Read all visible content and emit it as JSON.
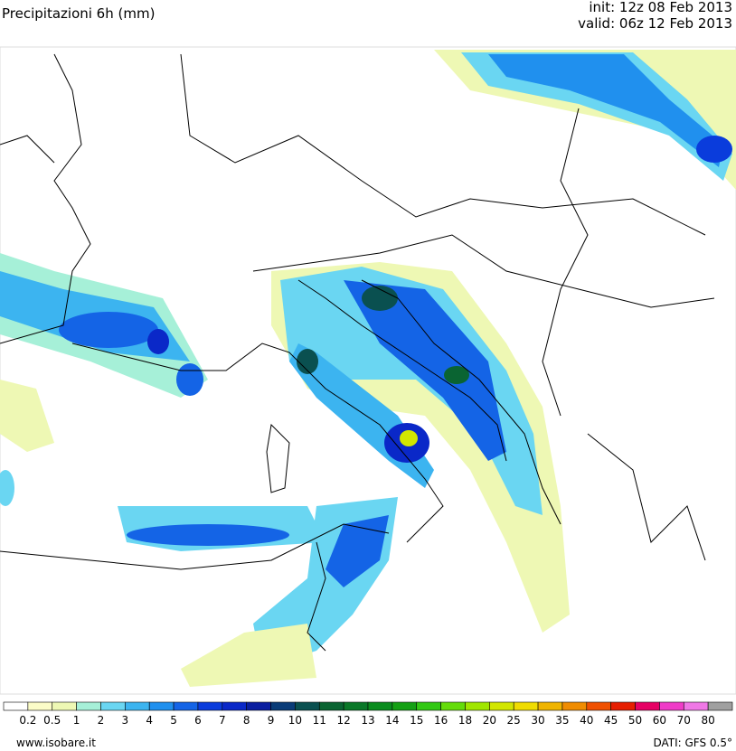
{
  "header": {
    "title": "Precipitazioni 6h (mm)",
    "init": "init: 12z 08 Feb 2013",
    "valid": "valid: 06z 12 Feb 2013"
  },
  "legend": {
    "labels": [
      0.2,
      0.5,
      1,
      2,
      3,
      4,
      5,
      6,
      7,
      8,
      9,
      10,
      11,
      12,
      13,
      14,
      15,
      16,
      18,
      20,
      25,
      30,
      35,
      40,
      45,
      50,
      60,
      70,
      80
    ],
    "colors": [
      "#ffffff",
      "#fbfcc8",
      "#eef8b4",
      "#a6f0d8",
      "#6ad6f2",
      "#3cb4f0",
      "#2090ee",
      "#1464e6",
      "#0a3cdc",
      "#0a28c8",
      "#0a1ea0",
      "#0a3c78",
      "#0a5050",
      "#0a6432",
      "#0a7828",
      "#0a8c1e",
      "#14a014",
      "#32c814",
      "#64dc0a",
      "#a0e600",
      "#d2e600",
      "#f0dc00",
      "#f0b400",
      "#f08c00",
      "#f05000",
      "#e61e00",
      "#e60064",
      "#f03cc8",
      "#f078e6",
      "#a0a0a0"
    ]
  },
  "footer": {
    "site": "www.isobare.it",
    "source": "DATI: GFS 0.5°"
  }
}
